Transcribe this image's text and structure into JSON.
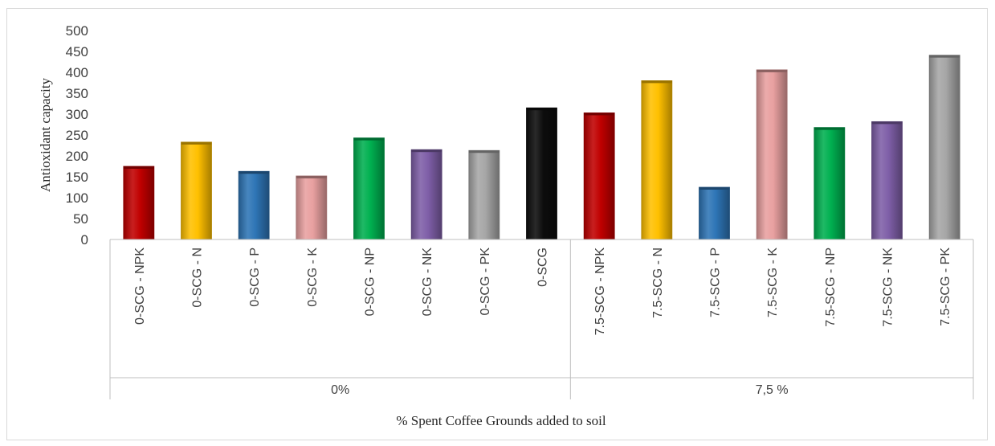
{
  "chart_data": {
    "type": "bar",
    "ylabel": "Antioxidant capacity",
    "xlabel": "% Spent Coffee Grounds added to soil",
    "ylim": [
      0,
      500
    ],
    "yticks": [
      0,
      50,
      100,
      150,
      200,
      250,
      300,
      350,
      400,
      450,
      500
    ],
    "grid": false,
    "legend": "none",
    "groups": [
      {
        "label": "0%",
        "count": 8
      },
      {
        "label": "7,5 %",
        "count": 7
      }
    ],
    "categories": [
      "0-SCG - NPK",
      "0-SCG - N",
      "0-SCG - P",
      "0-SCG - K",
      "0-SCG - NP",
      "0-SCG - NK",
      "0-SCG - PK",
      "0-SCG",
      "7.5-SCG - NPK",
      "7.5-SCG - N",
      "7.5-SCG - P",
      "7.5-SCG - K",
      "7.5-SCG - NP",
      "7.5-SCG - NK",
      "7.5-SCG - PK"
    ],
    "values": [
      175,
      233,
      163,
      152,
      243,
      215,
      213,
      315,
      303,
      380,
      125,
      406,
      268,
      282,
      441
    ],
    "colors": [
      "#c00000",
      "#ffc000",
      "#2e75b6",
      "#e8a0a0",
      "#00b050",
      "#7f5fa8",
      "#a6a6a6",
      "#0d0d0d",
      "#c00000",
      "#ffc000",
      "#2e75b6",
      "#e8a0a0",
      "#00b050",
      "#7f5fa8",
      "#a6a6a6"
    ]
  }
}
